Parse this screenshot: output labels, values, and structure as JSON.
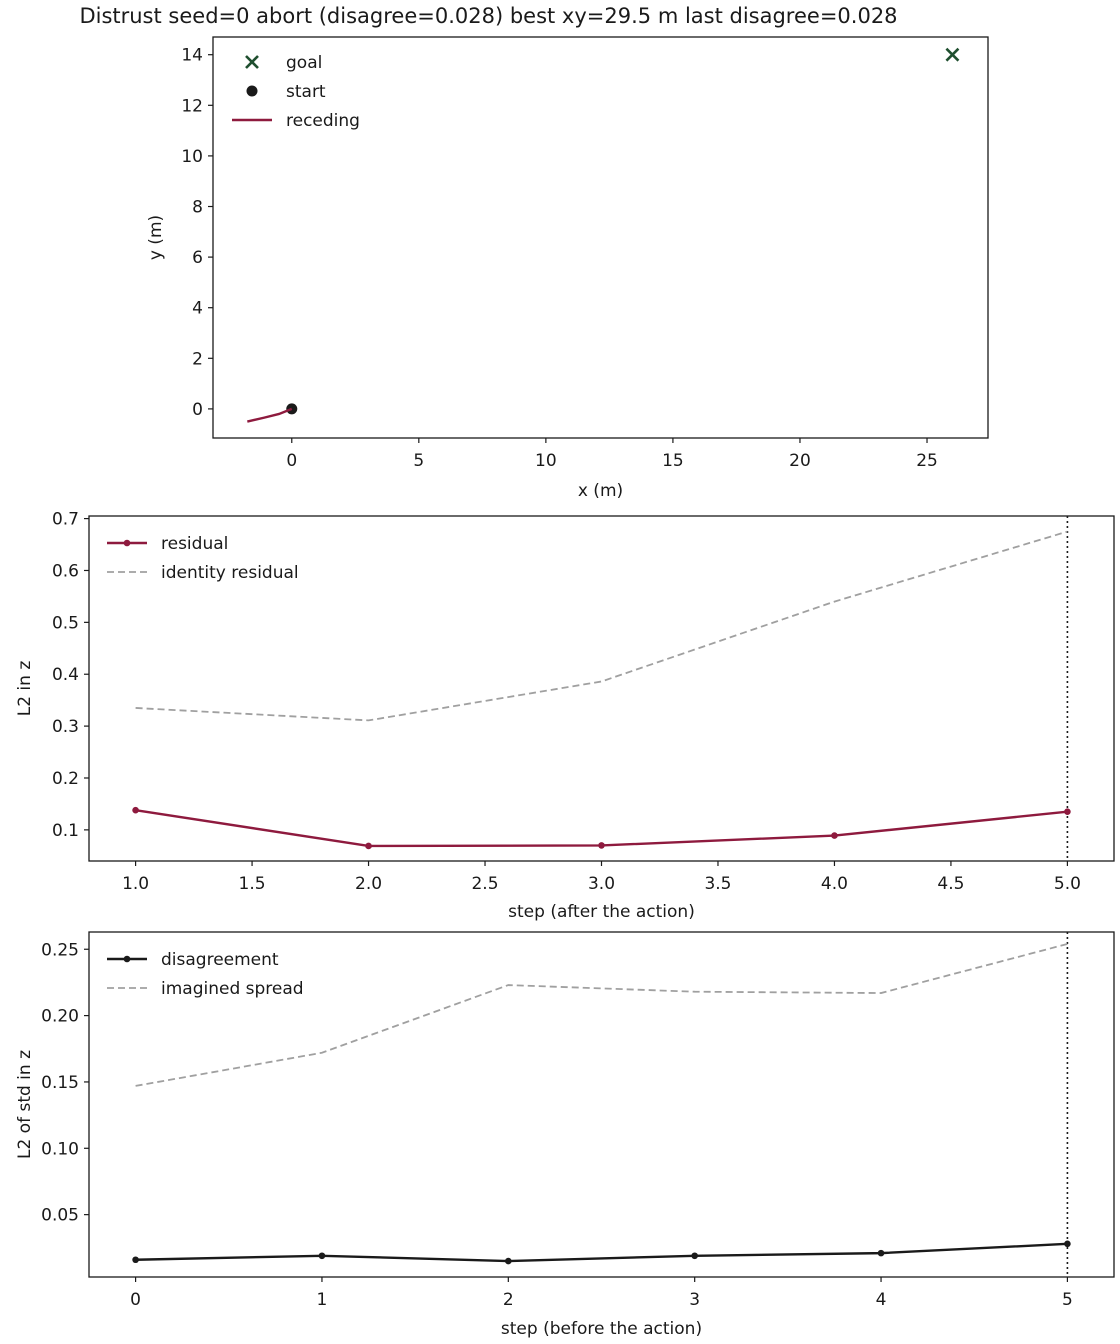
{
  "chart_data": [
    {
      "type": "line",
      "title": "Distrust  seed=0  abort (disagree=0.028)  best xy=29.5 m  last disagree=0.028",
      "xlabel": "x (m)",
      "ylabel": "y (m)",
      "xlim": [
        -3.1,
        27.4
      ],
      "ylim": [
        -1.15,
        14.7
      ],
      "xticks": [
        0,
        5,
        10,
        15,
        20,
        25
      ],
      "yticks": [
        0,
        2,
        4,
        6,
        8,
        10,
        12,
        14
      ],
      "xtick_labels": [
        "0",
        "5",
        "10",
        "15",
        "20",
        "25"
      ],
      "ytick_labels": [
        "0",
        "2",
        "4",
        "6",
        "8",
        "10",
        "12",
        "14"
      ],
      "legend": "top-left",
      "series": [
        {
          "name": "goal",
          "kind": "marker-x",
          "color": "#1f4f2f",
          "x": [
            26.0
          ],
          "y": [
            14.0
          ]
        },
        {
          "name": "start",
          "kind": "marker-dot",
          "color": "#1a1a1a",
          "x": [
            0.0
          ],
          "y": [
            0.0
          ]
        },
        {
          "name": "receding",
          "kind": "line",
          "color": "#8e1a3e",
          "x": [
            0.0,
            -0.5,
            -1.1,
            -1.75
          ],
          "y": [
            0.0,
            -0.2,
            -0.35,
            -0.5
          ]
        }
      ]
    },
    {
      "type": "line",
      "xlabel": "step (after the action)",
      "ylabel": "L2 in z",
      "xlim": [
        0.8,
        5.2
      ],
      "ylim": [
        0.04,
        0.705
      ],
      "xticks": [
        1.0,
        1.5,
        2.0,
        2.5,
        3.0,
        3.5,
        4.0,
        4.5,
        5.0
      ],
      "yticks": [
        0.1,
        0.2,
        0.3,
        0.4,
        0.5,
        0.6,
        0.7
      ],
      "xtick_labels": [
        "1.0",
        "1.5",
        "2.0",
        "2.5",
        "3.0",
        "3.5",
        "4.0",
        "4.5",
        "5.0"
      ],
      "ytick_labels": [
        "0.1",
        "0.2",
        "0.3",
        "0.4",
        "0.5",
        "0.6",
        "0.7"
      ],
      "vline": 5.0,
      "legend": "top-left",
      "series": [
        {
          "name": "residual",
          "kind": "line-dots",
          "color": "#8e1a3e",
          "x": [
            1,
            2,
            3,
            4,
            5
          ],
          "y": [
            0.138,
            0.069,
            0.07,
            0.089,
            0.135
          ]
        },
        {
          "name": "identity residual",
          "kind": "dashed",
          "color": "#a0a0a0",
          "x": [
            1,
            2,
            3,
            4,
            5
          ],
          "y": [
            0.335,
            0.311,
            0.386,
            0.54,
            0.675
          ]
        }
      ]
    },
    {
      "type": "line",
      "xlabel": "step (before the action)",
      "ylabel": "L2 of std in z",
      "xlim": [
        -0.25,
        5.25
      ],
      "ylim": [
        0.003,
        0.263
      ],
      "xticks": [
        0,
        1,
        2,
        3,
        4,
        5
      ],
      "yticks": [
        0.05,
        0.1,
        0.15,
        0.2,
        0.25
      ],
      "xtick_labels": [
        "0",
        "1",
        "2",
        "3",
        "4",
        "5"
      ],
      "ytick_labels": [
        "0.05",
        "0.10",
        "0.15",
        "0.20",
        "0.25"
      ],
      "vline": 5,
      "legend": "top-left",
      "series": [
        {
          "name": "disagreement",
          "kind": "line-dots",
          "color": "#1a1a1a",
          "x": [
            0,
            1,
            2,
            3,
            4,
            5
          ],
          "y": [
            0.016,
            0.019,
            0.015,
            0.019,
            0.021,
            0.028
          ]
        },
        {
          "name": "imagined spread",
          "kind": "dashed",
          "color": "#a0a0a0",
          "x": [
            0,
            1,
            2,
            3,
            4,
            5
          ],
          "y": [
            0.147,
            0.172,
            0.223,
            0.218,
            0.217,
            0.254
          ]
        }
      ]
    }
  ]
}
